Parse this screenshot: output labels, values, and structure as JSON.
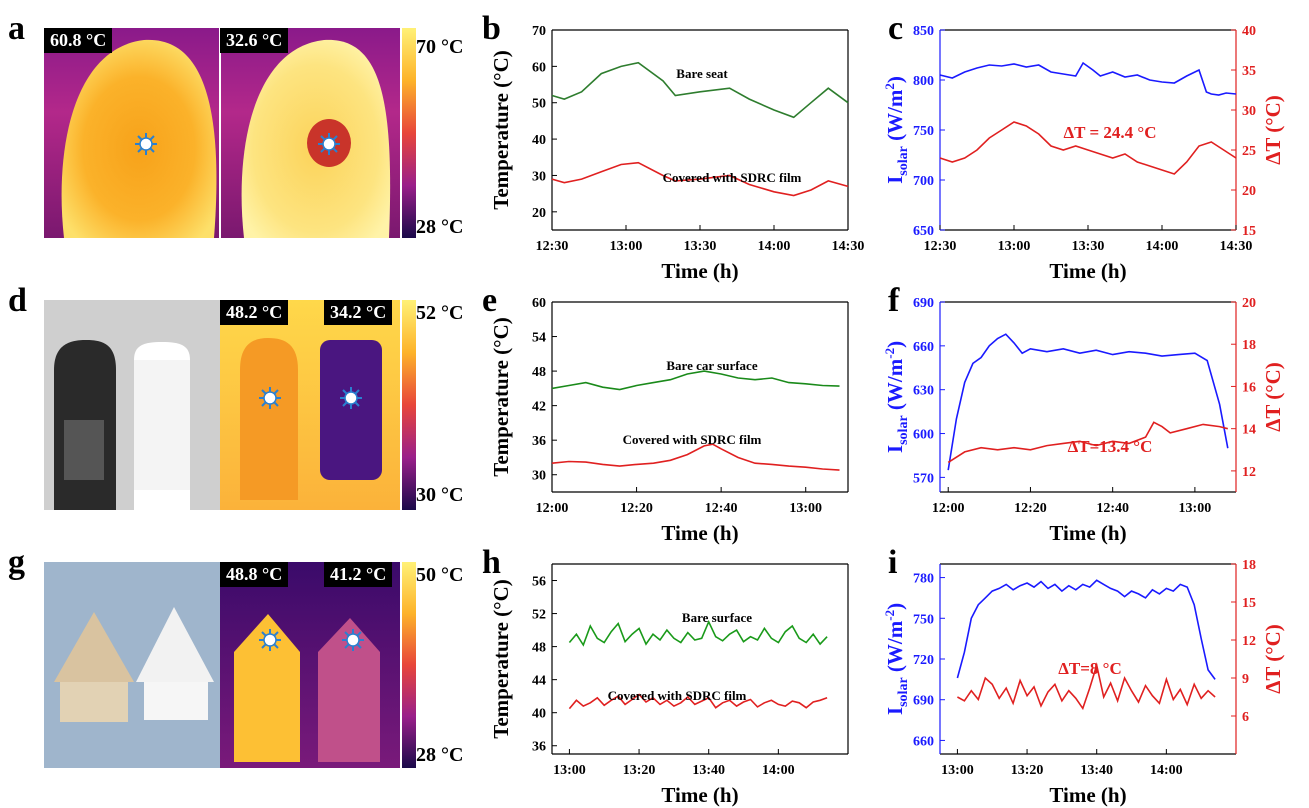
{
  "panels": {
    "a": "a",
    "b": "b",
    "c": "c",
    "d": "d",
    "e": "e",
    "f": "f",
    "g": "g",
    "h": "h",
    "i": "i"
  },
  "thermal": {
    "a": {
      "left_temp": "60.8 °C",
      "right_temp": "32.6 °C",
      "scale_max": "70 °C",
      "scale_min": "28 °C"
    },
    "d": {
      "left_temp": "48.2 °C",
      "right_temp": "34.2 °C",
      "scale_max": "52 °C",
      "scale_min": "30 °C"
    },
    "g": {
      "left_temp": "48.8 °C",
      "right_temp": "41.2 °C",
      "scale_max": "50 °C",
      "scale_min": "28 °C"
    }
  },
  "colors": {
    "green": "#1a8a1a",
    "dgreen": "#2e7d2e",
    "red": "#e02020",
    "blue": "#1a1aff",
    "right_axis": "#e02020"
  },
  "chart_data": [
    {
      "id": "b",
      "type": "line",
      "xlabel": "Time (h)",
      "ylabel": "Temperature (°C)",
      "xlim": [
        0,
        120
      ],
      "ylim": [
        15,
        70
      ],
      "xticks": [
        0,
        30,
        60,
        90,
        120
      ],
      "xticklabels": [
        "12:30",
        "13:00",
        "13:30",
        "14:00",
        "14:30"
      ],
      "yticks": [
        20,
        30,
        40,
        50,
        60,
        70
      ],
      "annotations": [
        "Bare seat",
        "Covered with SDRC film"
      ],
      "series": [
        {
          "color": "#2e7d2e",
          "x": [
            0,
            5,
            12,
            20,
            28,
            35,
            45,
            50,
            60,
            72,
            80,
            90,
            98,
            105,
            112,
            120
          ],
          "y": [
            52,
            51,
            53,
            58,
            60,
            61,
            56,
            52,
            53,
            54,
            51,
            48,
            46,
            50,
            54,
            50
          ]
        },
        {
          "color": "#e02020",
          "x": [
            0,
            5,
            12,
            20,
            28,
            35,
            45,
            50,
            60,
            72,
            80,
            90,
            98,
            105,
            112,
            120
          ],
          "y": [
            29,
            28,
            29,
            31,
            33,
            33.5,
            30,
            28.5,
            29,
            30,
            27.5,
            25.5,
            24.5,
            26,
            28.5,
            27
          ]
        }
      ]
    },
    {
      "id": "c",
      "type": "line",
      "xlabel": "Time (h)",
      "ylabel": "I_solar (W/m^2)",
      "y2label": "ΔT (°C)",
      "xlim": [
        0,
        120
      ],
      "ylim": [
        650,
        850
      ],
      "y2lim": [
        15,
        40
      ],
      "xticks": [
        0,
        30,
        60,
        90,
        120
      ],
      "xticklabels": [
        "12:30",
        "13:00",
        "13:30",
        "14:00",
        "14:30"
      ],
      "yticks": [
        650,
        700,
        750,
        800,
        850
      ],
      "y2ticks": [
        15,
        20,
        25,
        30,
        35,
        40
      ],
      "annotations": [
        "ΔT = 24.4 °C"
      ],
      "series": [
        {
          "axis": "left",
          "color": "#1a1aff",
          "x": [
            0,
            5,
            10,
            15,
            20,
            25,
            30,
            35,
            40,
            45,
            50,
            55,
            58,
            62,
            65,
            70,
            75,
            80,
            85,
            90,
            95,
            100,
            105,
            108,
            110,
            113,
            116,
            120
          ],
          "y": [
            805,
            802,
            808,
            812,
            815,
            814,
            816,
            813,
            815,
            808,
            806,
            804,
            817,
            810,
            804,
            808,
            803,
            805,
            800,
            798,
            797,
            804,
            810,
            788,
            786,
            785,
            787,
            786
          ]
        },
        {
          "axis": "right",
          "color": "#e02020",
          "x": [
            0,
            5,
            10,
            15,
            20,
            25,
            30,
            35,
            40,
            45,
            50,
            55,
            60,
            65,
            70,
            75,
            80,
            85,
            90,
            95,
            100,
            105,
            110,
            115,
            120
          ],
          "y": [
            24,
            23.5,
            24,
            25,
            26.5,
            27.5,
            28.5,
            28,
            27,
            25.5,
            25,
            25.5,
            25,
            24.5,
            24,
            24.5,
            23.5,
            23,
            22.5,
            22,
            23.5,
            25.5,
            26,
            25,
            24
          ]
        }
      ]
    },
    {
      "id": "e",
      "type": "line",
      "xlabel": "Time (h)",
      "ylabel": "Temperature (°C)",
      "xlim": [
        0,
        70
      ],
      "ylim": [
        27,
        60
      ],
      "xticks": [
        0,
        20,
        40,
        60
      ],
      "xticklabels": [
        "12:00",
        "12:20",
        "12:40",
        "13:00"
      ],
      "yticks": [
        30,
        36,
        42,
        48,
        54,
        60
      ],
      "annotations": [
        "Bare car surface",
        "Covered with SDRC film"
      ],
      "series": [
        {
          "color": "#1a8a1a",
          "x": [
            0,
            4,
            8,
            12,
            16,
            20,
            24,
            28,
            32,
            36,
            40,
            44,
            48,
            52,
            56,
            60,
            64,
            68
          ],
          "y": [
            45,
            45.5,
            46,
            45.2,
            44.8,
            45.5,
            46,
            46.5,
            47.5,
            48,
            47.5,
            46.8,
            46.5,
            46.8,
            46,
            45.8,
            45.5,
            45.4
          ]
        },
        {
          "color": "#e02020",
          "x": [
            0,
            4,
            8,
            12,
            16,
            20,
            24,
            28,
            32,
            36,
            38,
            40,
            44,
            48,
            52,
            56,
            60,
            64,
            68
          ],
          "y": [
            32,
            32.3,
            32.2,
            31.8,
            31.5,
            31.8,
            32,
            32.5,
            33.5,
            35,
            35.3,
            34.5,
            33,
            32,
            31.8,
            31.5,
            31.3,
            31,
            30.8
          ]
        }
      ]
    },
    {
      "id": "f",
      "type": "line",
      "xlabel": "Time (h)",
      "ylabel": "I_solar (W/m^-2)",
      "y2label": "ΔT (°C)",
      "xlim": [
        -2,
        70
      ],
      "ylim": [
        560,
        690
      ],
      "y2lim": [
        11,
        20
      ],
      "xticks": [
        0,
        20,
        40,
        60
      ],
      "xticklabels": [
        "12:00",
        "12:20",
        "12:40",
        "13:00"
      ],
      "yticks": [
        570,
        600,
        630,
        660,
        690
      ],
      "y2ticks": [
        12,
        14,
        16,
        18,
        20
      ],
      "annotations": [
        "ΔT=13.4 °C"
      ],
      "series": [
        {
          "axis": "left",
          "color": "#1a1aff",
          "x": [
            0,
            2,
            4,
            6,
            8,
            10,
            12,
            14,
            16,
            18,
            20,
            24,
            28,
            32,
            36,
            40,
            44,
            48,
            52,
            56,
            60,
            63,
            66,
            68
          ],
          "y": [
            575,
            610,
            635,
            648,
            652,
            660,
            665,
            668,
            662,
            655,
            658,
            656,
            658,
            655,
            657,
            654,
            656,
            655,
            653,
            654,
            655,
            650,
            620,
            590
          ]
        },
        {
          "axis": "right",
          "color": "#e02020",
          "x": [
            0,
            4,
            8,
            12,
            16,
            20,
            24,
            28,
            32,
            36,
            40,
            44,
            48,
            50,
            52,
            54,
            58,
            62,
            66,
            68
          ],
          "y": [
            12.4,
            12.9,
            13.1,
            13.0,
            13.1,
            13.0,
            13.2,
            13.3,
            13.4,
            13.2,
            13.4,
            13.3,
            13.6,
            14.3,
            14.1,
            13.8,
            14.0,
            14.2,
            14.1,
            14.0
          ]
        }
      ]
    },
    {
      "id": "h",
      "type": "line",
      "xlabel": "Time (h)",
      "ylabel": "Temperature (°C)",
      "xlim": [
        -5,
        80
      ],
      "ylim": [
        35,
        58
      ],
      "xticks": [
        0,
        20,
        40,
        60
      ],
      "xticklabels": [
        "13:00",
        "13:20",
        "13:40",
        "14:00"
      ],
      "yticks": [
        36,
        40,
        44,
        48,
        52,
        56
      ],
      "annotations": [
        "Bare surface",
        "Covered with SDRC film"
      ],
      "series": [
        {
          "color": "#1a9a1a",
          "x": [
            0,
            2,
            4,
            6,
            8,
            10,
            12,
            14,
            16,
            18,
            20,
            22,
            24,
            26,
            28,
            30,
            32,
            34,
            36,
            38,
            40,
            42,
            44,
            46,
            48,
            50,
            52,
            54,
            56,
            58,
            60,
            62,
            64,
            66,
            68,
            70,
            72,
            74
          ],
          "y": [
            48.5,
            49.5,
            48.2,
            50.5,
            49,
            48.5,
            49.8,
            50.8,
            48.6,
            49.5,
            50.2,
            48.3,
            49.5,
            48.8,
            50,
            49,
            48.5,
            49.7,
            48.8,
            49,
            51,
            49.2,
            48.7,
            49.5,
            50,
            48.6,
            49.2,
            48.8,
            50.2,
            49,
            48.5,
            49.8,
            50.5,
            49,
            48.5,
            49.5,
            48.3,
            49.2
          ]
        },
        {
          "color": "#e02020",
          "x": [
            0,
            2,
            4,
            6,
            8,
            10,
            12,
            14,
            16,
            18,
            20,
            22,
            24,
            26,
            28,
            30,
            32,
            34,
            36,
            38,
            40,
            42,
            44,
            46,
            48,
            50,
            52,
            54,
            56,
            58,
            60,
            62,
            64,
            66,
            68,
            70,
            72,
            74
          ],
          "y": [
            40.5,
            41.5,
            40.8,
            41.2,
            41.8,
            40.9,
            41.5,
            42,
            41,
            41.6,
            42.2,
            41.3,
            41.8,
            41,
            41.5,
            40.8,
            41.2,
            41.9,
            41,
            41.4,
            41.8,
            40.6,
            41.2,
            41.5,
            40.8,
            41.3,
            41.6,
            40.7,
            41.2,
            41.5,
            41,
            40.8,
            41.4,
            41.2,
            40.6,
            41.3,
            41.5,
            41.8
          ]
        }
      ]
    },
    {
      "id": "i",
      "type": "line",
      "xlabel": "Time (h)",
      "ylabel": "I_solar (W/m^-2)",
      "y2label": "ΔT (°C)",
      "xlim": [
        -5,
        80
      ],
      "ylim": [
        650,
        790
      ],
      "y2lim": [
        3,
        18
      ],
      "xticks": [
        0,
        20,
        40,
        60
      ],
      "xticklabels": [
        "13:00",
        "13:20",
        "13:40",
        "14:00"
      ],
      "yticks": [
        660,
        690,
        720,
        750,
        780
      ],
      "y2ticks": [
        6,
        9,
        12,
        15,
        18
      ],
      "annotations": [
        "ΔT=8 °C"
      ],
      "series": [
        {
          "axis": "left",
          "color": "#1a1aff",
          "x": [
            0,
            2,
            4,
            6,
            8,
            10,
            12,
            14,
            16,
            18,
            20,
            22,
            24,
            26,
            28,
            30,
            32,
            34,
            36,
            38,
            40,
            42,
            44,
            46,
            48,
            50,
            52,
            54,
            56,
            58,
            60,
            62,
            64,
            66,
            68,
            70,
            72,
            74
          ],
          "y": [
            706,
            725,
            750,
            760,
            765,
            770,
            772,
            775,
            771,
            774,
            776,
            773,
            777,
            772,
            775,
            770,
            774,
            771,
            775,
            773,
            778,
            775,
            772,
            770,
            766,
            770,
            768,
            765,
            771,
            768,
            772,
            770,
            775,
            773,
            760,
            735,
            712,
            705
          ]
        },
        {
          "axis": "right",
          "color": "#e02020",
          "x": [
            0,
            2,
            4,
            6,
            8,
            10,
            12,
            14,
            16,
            18,
            20,
            22,
            24,
            26,
            28,
            30,
            32,
            34,
            36,
            38,
            40,
            42,
            44,
            46,
            48,
            50,
            52,
            54,
            56,
            58,
            60,
            62,
            64,
            66,
            68,
            70,
            72,
            74
          ],
          "y": [
            7.5,
            7.2,
            8,
            7.3,
            9,
            8.5,
            7.4,
            8.2,
            7,
            8.8,
            7.6,
            8.3,
            6.8,
            7.9,
            8.5,
            7.2,
            8,
            7.4,
            6.6,
            8.2,
            10,
            7.5,
            8.6,
            7.2,
            9,
            8,
            7.1,
            8.4,
            7.6,
            7,
            8.9,
            7.3,
            8.1,
            6.9,
            8.5,
            7.4,
            8,
            7.5
          ]
        }
      ]
    }
  ]
}
